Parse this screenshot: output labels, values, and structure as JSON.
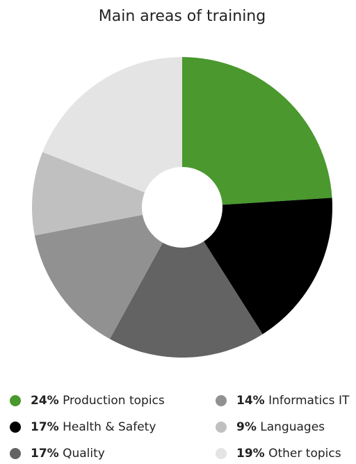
{
  "chart_data": {
    "type": "donut",
    "title": "Main areas of training",
    "categories": [
      "Production topics",
      "Health & Safety",
      "Quality",
      "Informatics IT",
      "Languages",
      "Other topics"
    ],
    "values": [
      24,
      17,
      17,
      14,
      9,
      19
    ],
    "value_labels": [
      "24%",
      "17%",
      "17%",
      "14%",
      "9%",
      "19%"
    ],
    "colors": [
      "#4a982e",
      "#000000",
      "#636363",
      "#919191",
      "#c0c0c0",
      "#e4e4e4"
    ]
  }
}
